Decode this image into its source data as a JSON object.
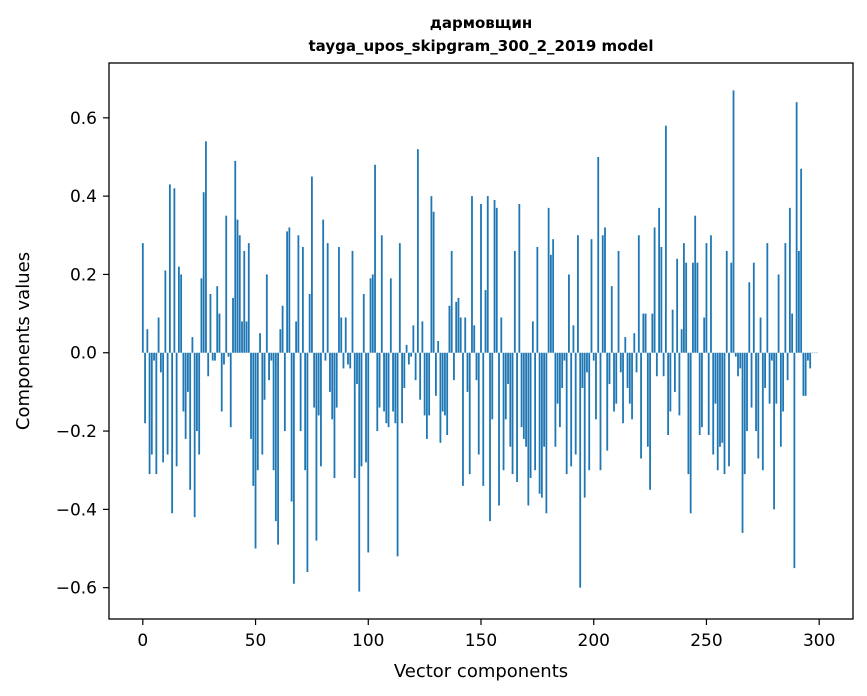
{
  "chart_data": {
    "type": "bar",
    "title": "дармовщин",
    "subtitle": "tayga_upos_skipgram_300_2_2019 model",
    "xlabel": "Vector components",
    "ylabel": "Components values",
    "xlim": [
      -15,
      315
    ],
    "ylim": [
      -0.68,
      0.74
    ],
    "xticks": [
      0,
      50,
      100,
      150,
      200,
      250,
      300
    ],
    "yticks": [
      -0.6,
      -0.4,
      -0.2,
      0.0,
      0.2,
      0.4,
      0.6
    ],
    "ytick_labels": [
      "−0.6",
      "−0.4",
      "−0.2",
      "0.0",
      "0.2",
      "0.4",
      "0.6"
    ],
    "grid": false,
    "color": "#1f77b4",
    "values": [
      0.28,
      -0.18,
      0.06,
      -0.31,
      -0.26,
      -0.02,
      -0.31,
      0.09,
      -0.05,
      -0.28,
      0.21,
      -0.26,
      0.43,
      -0.41,
      0.42,
      -0.29,
      0.22,
      0.2,
      -0.15,
      -0.22,
      -0.1,
      -0.35,
      0.04,
      -0.42,
      -0.2,
      -0.26,
      0.19,
      0.41,
      0.54,
      -0.06,
      0.15,
      -0.02,
      -0.02,
      0.17,
      0.1,
      -0.15,
      -0.03,
      0.35,
      -0.01,
      -0.19,
      0.14,
      0.49,
      0.34,
      0.3,
      0.08,
      0.26,
      0.08,
      0.28,
      -0.22,
      -0.34,
      -0.5,
      -0.3,
      0.05,
      -0.26,
      -0.12,
      0.2,
      -0.07,
      -0.02,
      -0.3,
      -0.43,
      -0.49,
      0.06,
      0.12,
      -0.2,
      0.31,
      0.32,
      -0.38,
      -0.59,
      0.08,
      0.3,
      -0.2,
      0.27,
      -0.3,
      -0.56,
      0.15,
      0.45,
      -0.14,
      -0.48,
      -0.16,
      -0.29,
      0.34,
      -0.02,
      0.28,
      -0.1,
      -0.17,
      -0.32,
      -0.14,
      0.27,
      0.09,
      -0.04,
      0.09,
      -0.03,
      -0.04,
      0.26,
      -0.32,
      -0.08,
      -0.61,
      -0.29,
      0.15,
      -0.28,
      -0.51,
      0.19,
      0.2,
      0.48,
      -0.2,
      -0.14,
      0.3,
      -0.15,
      -0.18,
      -0.19,
      0.19,
      -0.15,
      -0.18,
      -0.52,
      0.28,
      -0.18,
      -0.09,
      0.02,
      -0.03,
      -0.01,
      0.07,
      -0.07,
      0.52,
      -0.12,
      0.08,
      -0.16,
      -0.22,
      -0.16,
      0.4,
      0.36,
      -0.11,
      0.03,
      -0.23,
      -0.15,
      -0.16,
      -0.21,
      0.12,
      0.26,
      -0.07,
      0.13,
      0.14,
      0.09,
      -0.34,
      0.09,
      -0.1,
      -0.31,
      0.4,
      0.07,
      -0.07,
      -0.26,
      0.38,
      -0.34,
      0.16,
      0.4,
      -0.43,
      -0.17,
      0.39,
      0.37,
      -0.39,
      0.09,
      -0.3,
      -0.17,
      -0.08,
      -0.24,
      -0.31,
      0.26,
      -0.33,
      0.38,
      -0.19,
      -0.22,
      -0.24,
      -0.39,
      -0.32,
      0.08,
      -0.3,
      0.27,
      -0.36,
      -0.37,
      -0.24,
      -0.41,
      0.37,
      0.25,
      0.29,
      -0.24,
      -0.13,
      -0.19,
      -0.09,
      -0.02,
      -0.31,
      0.2,
      -0.29,
      0.07,
      -0.26,
      0.3,
      -0.6,
      -0.09,
      -0.37,
      -0.05,
      -0.3,
      0.29,
      -0.02,
      -0.17,
      0.5,
      -0.3,
      0.3,
      0.32,
      -0.25,
      -0.08,
      0.17,
      -0.15,
      -0.13,
      0.26,
      -0.05,
      -0.18,
      0.04,
      -0.09,
      -0.13,
      -0.17,
      0.05,
      -0.05,
      0.3,
      -0.27,
      0.1,
      0.1,
      -0.24,
      -0.35,
      0.1,
      0.32,
      -0.06,
      0.37,
      0.27,
      -0.06,
      0.58,
      -0.21,
      -0.15,
      0.11,
      -0.1,
      0.24,
      -0.16,
      0.06,
      0.28,
      0.23,
      -0.31,
      -0.41,
      0.23,
      0.35,
      0.23,
      -0.21,
      -0.19,
      0.09,
      0.28,
      -0.21,
      0.3,
      -0.26,
      -0.13,
      -0.3,
      -0.24,
      -0.23,
      -0.31,
      0.26,
      -0.29,
      0.23,
      0.67,
      -0.01,
      -0.06,
      -0.04,
      -0.46,
      -0.31,
      -0.2,
      0.18,
      -0.14,
      0.23,
      -0.2,
      -0.27,
      0.09,
      -0.3,
      -0.09,
      0.28,
      -0.13,
      -0.02,
      -0.4,
      -0.13,
      0.2,
      -0.24,
      -0.15,
      0.28,
      -0.07,
      0.37,
      0.1,
      -0.55,
      0.64,
      0.26,
      0.47,
      -0.11,
      -0.11,
      -0.02,
      -0.04,
      0.0,
      0.0,
      0.0
    ]
  }
}
